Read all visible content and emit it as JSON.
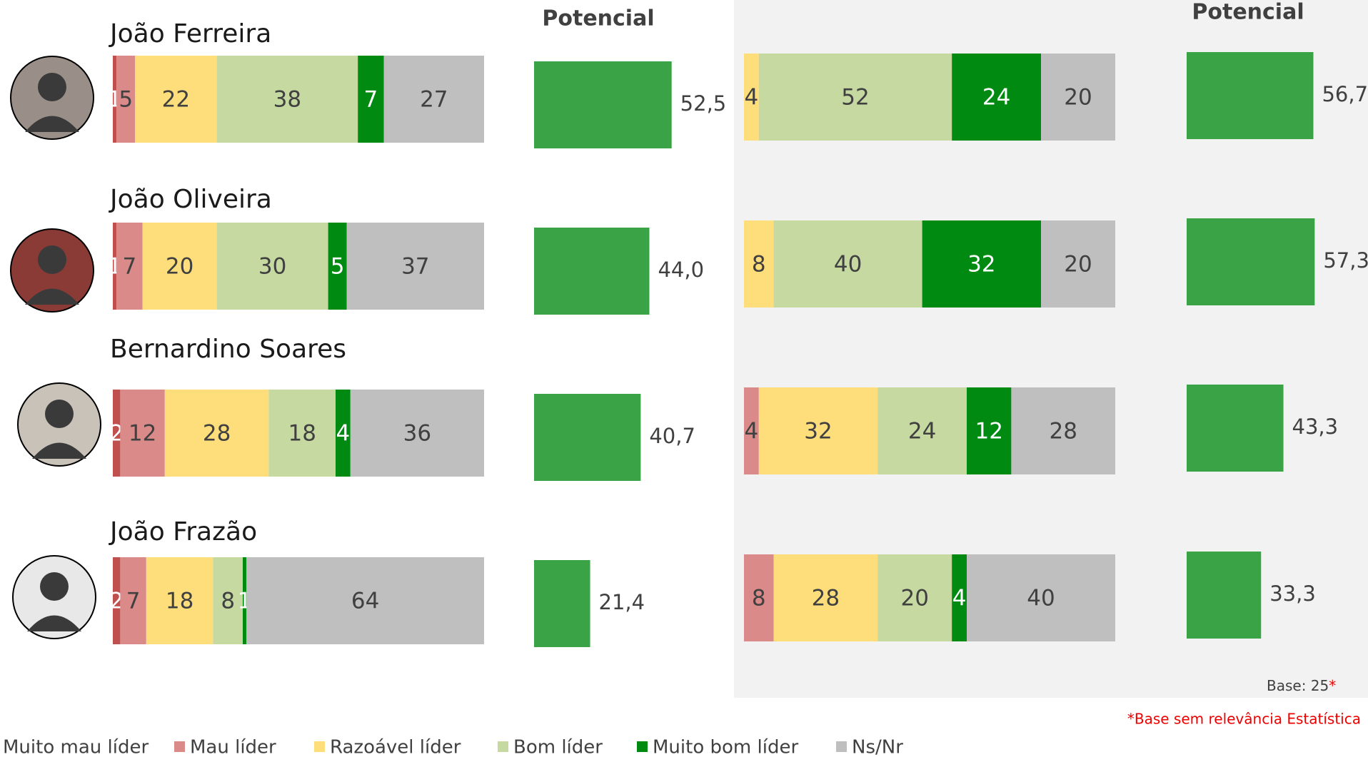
{
  "chart_data": [
    {
      "type": "stacked_bar_h",
      "categories": [
        "João Ferreira",
        "João Oliveira",
        "Bernardino Soares",
        "João Frazão"
      ],
      "series": [
        {
          "name": "Muito mau líder",
          "color": "#c0504d",
          "values": [
            1,
            1,
            2,
            2
          ]
        },
        {
          "name": "Mau líder",
          "color": "#da8a88",
          "values": [
            5,
            7,
            12,
            7
          ]
        },
        {
          "name": "Razoável líder",
          "color": "#fedd7b",
          "values": [
            22,
            20,
            28,
            18
          ]
        },
        {
          "name": "Bom líder",
          "color": "#c5d9a1",
          "values": [
            38,
            30,
            18,
            8
          ]
        },
        {
          "name": "Muito bom líder",
          "color": "#008a12",
          "values": [
            7,
            5,
            4,
            1
          ]
        },
        {
          "name": "Ns/Nr",
          "color": "#bfbfbf",
          "values": [
            27,
            37,
            36,
            64
          ]
        }
      ],
      "xlim": [
        0,
        100
      ]
    },
    {
      "type": "bar_h",
      "title": "Potencial",
      "color": "#3aa345",
      "values": [
        52.5,
        44.0,
        40.7,
        21.4
      ],
      "value_labels": [
        "52,5",
        "44,0",
        "40,7",
        "21,4"
      ],
      "xlim": [
        0,
        100
      ]
    },
    {
      "type": "stacked_bar_h",
      "series": [
        {
          "name": "Muito mau líder",
          "color": "#c0504d",
          "values": [
            0,
            0,
            0,
            0
          ]
        },
        {
          "name": "Mau líder",
          "color": "#da8a88",
          "values": [
            0,
            0,
            4,
            8
          ]
        },
        {
          "name": "Razoável líder",
          "color": "#fedd7b",
          "values": [
            4,
            8,
            32,
            28
          ]
        },
        {
          "name": "Bom líder",
          "color": "#c5d9a1",
          "values": [
            52,
            40,
            24,
            20
          ]
        },
        {
          "name": "Muito bom líder",
          "color": "#008a12",
          "values": [
            24,
            32,
            12,
            4
          ]
        },
        {
          "name": "Ns/Nr",
          "color": "#bfbfbf",
          "values": [
            20,
            20,
            28,
            40
          ]
        }
      ],
      "xlim": [
        0,
        100
      ]
    },
    {
      "type": "bar_h",
      "title": "Potencial",
      "color": "#3aa345",
      "values": [
        56.7,
        57.3,
        43.3,
        33.3
      ],
      "value_labels": [
        "56,7",
        "57,3",
        "43,3",
        "33,3"
      ],
      "xlim": [
        0,
        100
      ]
    }
  ],
  "notes": {
    "base": "Base: 25",
    "base_mark": "*",
    "footnote": "*Base sem relevância Estatística"
  }
}
